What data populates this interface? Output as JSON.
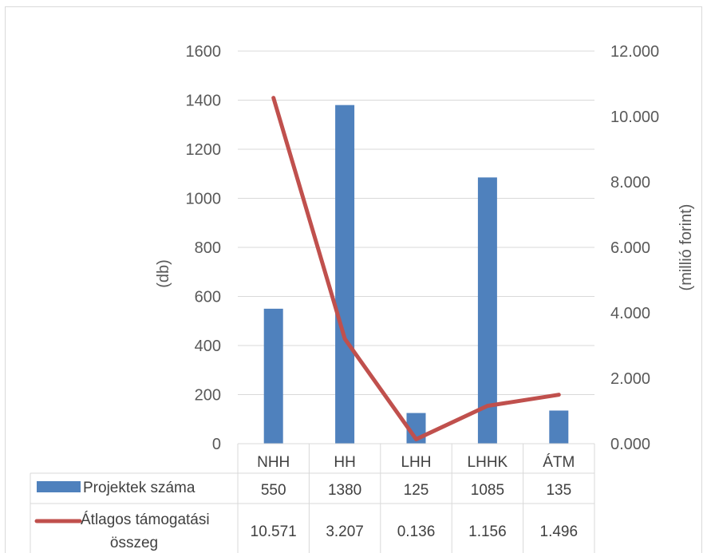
{
  "chart_data": {
    "type": "bar",
    "categories": [
      "NHH",
      "HH",
      "LHH",
      "LHHK",
      "ÁTM"
    ],
    "series": [
      {
        "name": "Projektek száma",
        "type": "bar",
        "axis": "left",
        "color": "#4f81bd",
        "values": [
          550,
          1380,
          125,
          1085,
          135
        ],
        "labels": [
          "550",
          "1380",
          "125",
          "1085",
          "135"
        ]
      },
      {
        "name": "Átlagos támogatási összeg",
        "name_lines": [
          "Átlagos támogatási",
          "összeg"
        ],
        "type": "line",
        "axis": "right",
        "color": "#c0504d",
        "values": [
          10.571,
          3.207,
          0.136,
          1.156,
          1.496
        ],
        "labels": [
          "10.571",
          "3.207",
          "0.136",
          "1.156",
          "1.496"
        ]
      }
    ],
    "ylabel": "(db)",
    "y2label": "(millió forint)",
    "ylim": [
      0,
      1600
    ],
    "y2lim": [
      0,
      12
    ],
    "yticks": [
      "0",
      "200",
      "400",
      "600",
      "800",
      "1000",
      "1200",
      "1400",
      "1600"
    ],
    "y2ticks": [
      "0.000",
      "2.000",
      "4.000",
      "6.000",
      "8.000",
      "10.000",
      "12.000"
    ],
    "grid": true,
    "legend": "data-table"
  }
}
